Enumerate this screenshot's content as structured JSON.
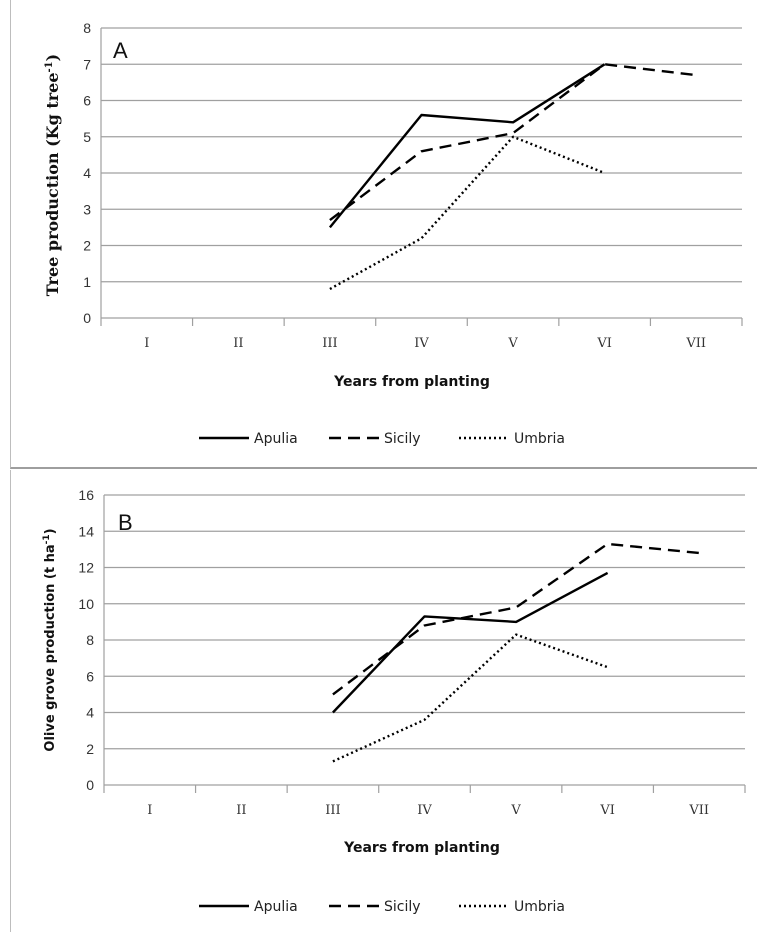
{
  "chart_data": [
    {
      "type": "line",
      "panel_label": "A",
      "xlabel": "Years from planting",
      "ylabel_main": "Tree production  (Kg tree",
      "ylabel_sup": "-1",
      "ylabel_end": ")",
      "categories": [
        "I",
        "II",
        "III",
        "IV",
        "V",
        "VI",
        "VII"
      ],
      "ylim": [
        0,
        8
      ],
      "yticks": [
        "0",
        "1",
        "2",
        "3",
        "4",
        "5",
        "6",
        "7",
        "8"
      ],
      "grid": true,
      "legend_position": "bottom",
      "series": [
        {
          "name": "Apulia",
          "style": "solid",
          "values": [
            null,
            null,
            2.5,
            5.6,
            5.4,
            7.0,
            null
          ]
        },
        {
          "name": "Sicily",
          "style": "dashed",
          "values": [
            null,
            null,
            2.7,
            4.6,
            5.1,
            7.0,
            6.7
          ]
        },
        {
          "name": "Umbria",
          "style": "dotted",
          "values": [
            null,
            null,
            0.8,
            2.2,
            5.0,
            4.0,
            null
          ]
        }
      ]
    },
    {
      "type": "line",
      "panel_label": "B",
      "xlabel": "Years from planting",
      "ylabel_main": "Olive grove production (t ha",
      "ylabel_sup": "-1",
      "ylabel_end": ")",
      "categories": [
        "I",
        "II",
        "III",
        "IV",
        "V",
        "VI",
        "VII"
      ],
      "ylim": [
        0,
        16
      ],
      "yticks": [
        "0",
        "2",
        "4",
        "6",
        "8",
        "10",
        "12",
        "14",
        "16"
      ],
      "grid": true,
      "legend_position": "bottom",
      "series": [
        {
          "name": "Apulia",
          "style": "solid",
          "values": [
            null,
            null,
            4.0,
            9.3,
            9.0,
            11.7,
            null
          ]
        },
        {
          "name": "Sicily",
          "style": "dashed",
          "values": [
            null,
            null,
            5.0,
            8.8,
            9.8,
            13.3,
            12.8
          ]
        },
        {
          "name": "Umbria",
          "style": "dotted",
          "values": [
            null,
            null,
            1.3,
            3.6,
            8.3,
            6.5,
            null
          ]
        }
      ]
    }
  ]
}
